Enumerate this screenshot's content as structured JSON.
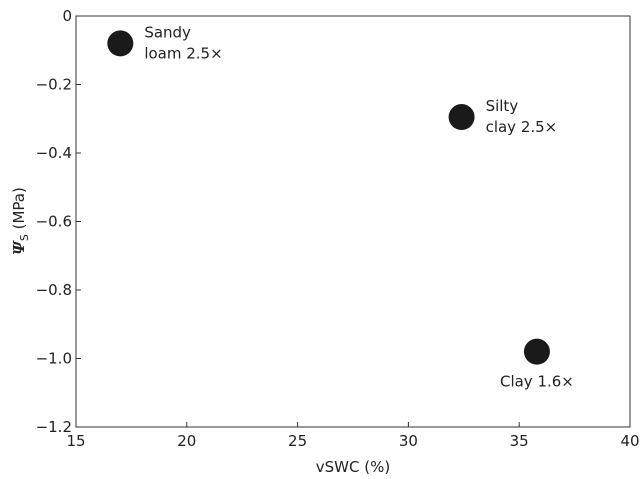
{
  "chart_data": {
    "type": "scatter",
    "title": "",
    "xlabel": "vSWC (%)",
    "ylabel": {
      "symbol": "Ψ",
      "subscript": "S",
      "unit": " (MPa)"
    },
    "xlim": [
      15,
      40
    ],
    "ylim": [
      -1.2,
      0
    ],
    "x_ticks": [
      15,
      20,
      25,
      30,
      35,
      40
    ],
    "y_ticks": [
      0,
      -0.2,
      -0.4,
      -0.6,
      -0.8,
      -1.0,
      -1.2
    ],
    "x_tick_labels": [
      "15",
      "20",
      "25",
      "30",
      "35",
      "40"
    ],
    "y_tick_labels": [
      "0",
      "−0.2",
      "−0.4",
      "−0.6",
      "−0.8",
      "−1.0",
      "−1.2"
    ],
    "grid": false,
    "legend": "none",
    "marker_color": "#1a1a1a",
    "points": [
      {
        "x": 17.0,
        "y": -0.08,
        "label": [
          "Sandy",
          "loam 2.5×"
        ],
        "label_position": "right"
      },
      {
        "x": 32.4,
        "y": -0.295,
        "label": [
          "Silty",
          "clay 2.5×"
        ],
        "label_position": "right"
      },
      {
        "x": 35.8,
        "y": -0.98,
        "label": [
          "Clay 1.6×"
        ],
        "label_position": "below"
      }
    ]
  }
}
